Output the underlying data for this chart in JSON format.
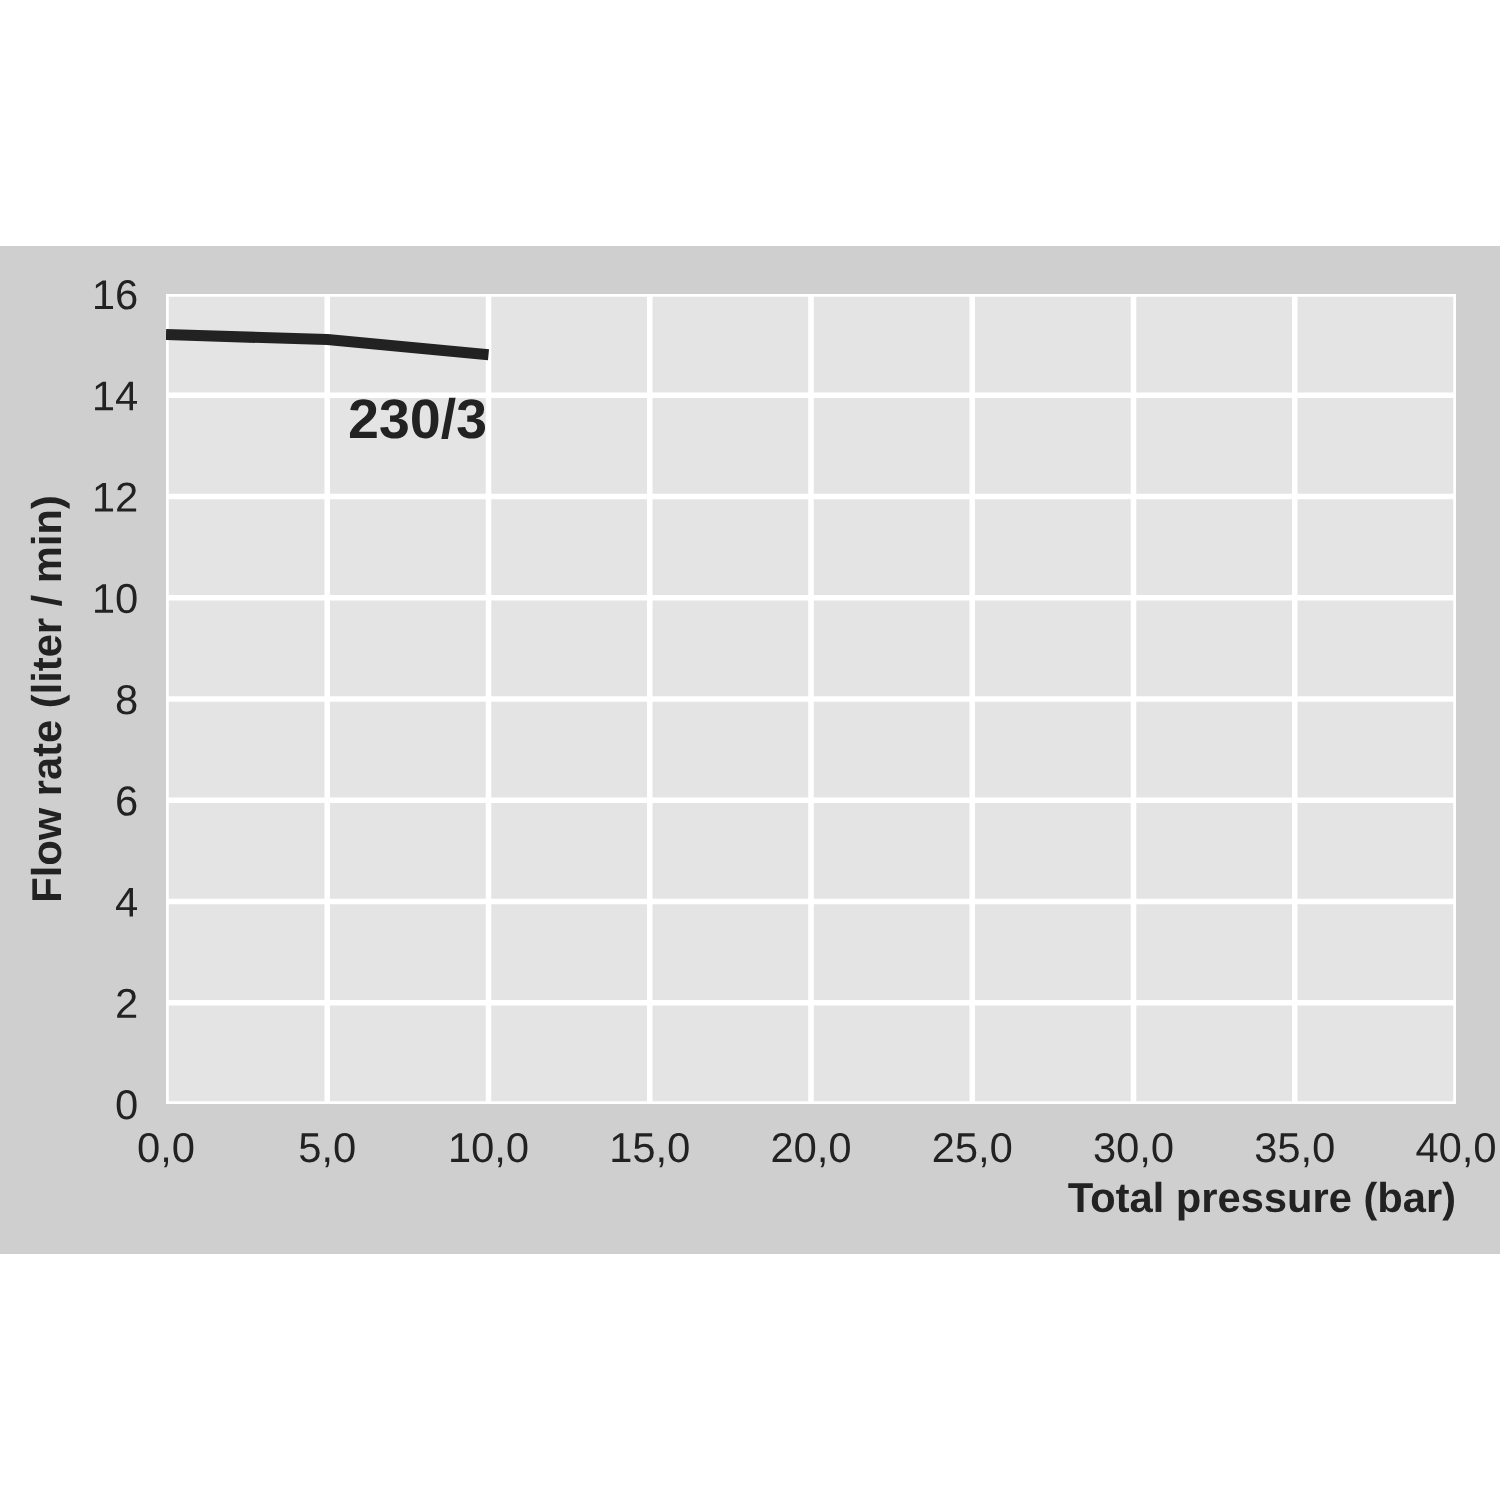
{
  "chart_data": {
    "type": "line",
    "xlabel": "Total pressure (bar)",
    "ylabel": "Flow rate (liter / min)",
    "x": [
      0,
      5,
      10
    ],
    "series": [
      {
        "color": "#222222",
        "values": [
          15.2,
          15.1,
          14.8
        ]
      }
    ],
    "annotations": [
      "230/3"
    ],
    "xlim": [
      0,
      40
    ],
    "ylim": [
      0,
      16
    ],
    "xticks": [
      {
        "value": 0,
        "label": "0,0"
      },
      {
        "value": 5,
        "label": "5,0"
      },
      {
        "value": 10,
        "label": "10,0"
      },
      {
        "value": 15,
        "label": "15,0"
      },
      {
        "value": 20,
        "label": "20,0"
      },
      {
        "value": 25,
        "label": "25,0"
      },
      {
        "value": 30,
        "label": "30,0"
      },
      {
        "value": 35,
        "label": "35,0"
      },
      {
        "value": 40,
        "label": "40,0"
      }
    ],
    "yticks": [
      0,
      2,
      4,
      6,
      8,
      10,
      12,
      14,
      16
    ],
    "grid": true,
    "marker": "none",
    "line_style": "solid",
    "legend": false
  }
}
